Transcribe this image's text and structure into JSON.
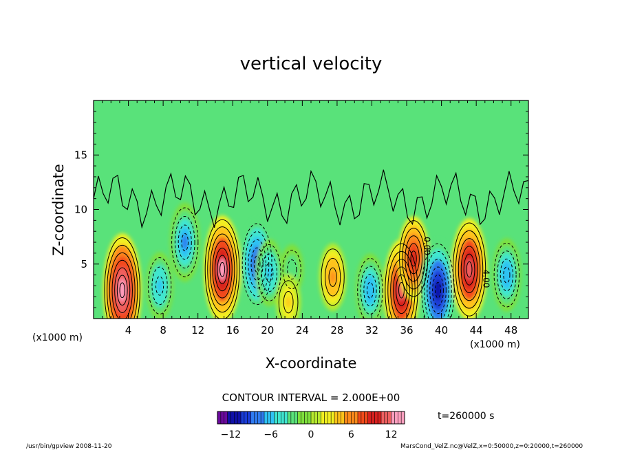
{
  "chart_data": {
    "type": "heatmap",
    "title": "vertical velocity",
    "xlabel": "X-coordinate",
    "ylabel": "Z-coordinate",
    "x_unit_left": "(x1000 m)",
    "x_unit_right": "(x1000 m)",
    "xlim": [
      0,
      50
    ],
    "ylim": [
      0,
      20
    ],
    "x_ticks": [
      4,
      8,
      12,
      16,
      20,
      24,
      28,
      32,
      36,
      40,
      44,
      48
    ],
    "y_ticks": [
      5,
      10,
      15
    ],
    "contour_interval_text": "CONTOUR INTERVAL = 2.000E+00",
    "time_text": "t=260000 s",
    "colorbar": {
      "min": -14,
      "max": 14,
      "ticks": [
        -12,
        -6,
        0,
        6,
        12
      ],
      "colors": [
        "#6a0a9c",
        "#1010a8",
        "#1a3cd8",
        "#2f7bf0",
        "#2fc2f4",
        "#3fe6d0",
        "#59e27a",
        "#7fe03c",
        "#b6ea2e",
        "#f2f020",
        "#ffc21a",
        "#ff8a1a",
        "#f24a1a",
        "#d8201e",
        "#f06060",
        "#ff9fbf"
      ]
    },
    "contour_labels": [
      "0.00",
      "4.00"
    ],
    "cells": [
      {
        "x": 3.3,
        "z": 2.6,
        "value": 14
      },
      {
        "x": 7.6,
        "z": 3.0,
        "value": -6
      },
      {
        "x": 10.5,
        "z": 7.0,
        "value": -8
      },
      {
        "x": 14.8,
        "z": 4.5,
        "value": 13
      },
      {
        "x": 18.8,
        "z": 5.0,
        "value": -10
      },
      {
        "x": 20.2,
        "z": 4.2,
        "value": -6
      },
      {
        "x": 22.8,
        "z": 4.5,
        "value": -3
      },
      {
        "x": 27.5,
        "z": 3.8,
        "value": 6
      },
      {
        "x": 31.8,
        "z": 2.6,
        "value": -7
      },
      {
        "x": 35.4,
        "z": 2.6,
        "value": 12
      },
      {
        "x": 36.8,
        "z": 5.5,
        "value": 9
      },
      {
        "x": 39.6,
        "z": 2.6,
        "value": -12
      },
      {
        "x": 43.2,
        "z": 4.5,
        "value": 12
      },
      {
        "x": 47.5,
        "z": 4.0,
        "value": -7
      },
      {
        "x": 22.4,
        "z": 1.5,
        "value": 4
      }
    ],
    "colorbar_name": "",
    "footer_left": "/usr/bin/gpview   2008-11-20",
    "footer_right": "MarsCond_VelZ.nc@VelZ,x=0:50000,z=0:20000,t=260000"
  }
}
